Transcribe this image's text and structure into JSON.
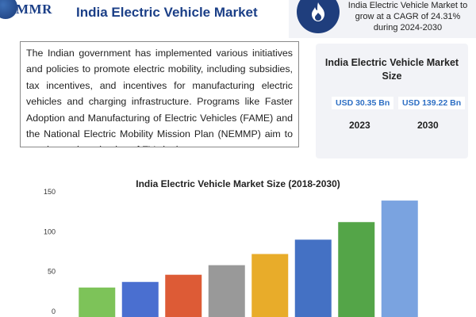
{
  "header": {
    "logo_text": "MMR",
    "title": "India Electric Vehicle Market"
  },
  "cagr": {
    "text": "India Electric Vehicle Market to grow at a CAGR of 24.31% during 2024-2030",
    "icon": "flame-icon"
  },
  "intro": {
    "paragraph": "The Indian government has implemented various initiatives and policies to promote electric mobility, including subsidies, tax incentives, and incentives for manufacturing electric vehicles and charging infrastructure. Programs like Faster Adoption and Manufacturing of Electric Vehicles (FAME) and the National Electric Mobility Mission Plan (NEMMP) aim to accelerate the adoption of EVs in the country."
  },
  "market_size": {
    "title": "India Electric Vehicle Market Size",
    "values": [
      {
        "amount": "USD 30.35 Bn",
        "year": "2023"
      },
      {
        "amount": "USD 139.22 Bn",
        "year": "2030"
      }
    ]
  },
  "chart_data": {
    "type": "bar",
    "title": "India Electric Vehicle Market Size (2018-2030)",
    "categories": [
      "",
      "",
      "",
      "",
      "",
      "",
      "",
      ""
    ],
    "values": [
      30,
      37,
      46,
      58,
      72,
      90,
      112,
      139
    ],
    "colors": [
      "#7dc359",
      "#4a6fd0",
      "#dd5b36",
      "#999999",
      "#e8ac2a",
      "#4471c4",
      "#54a548",
      "#7aa3e0"
    ],
    "ylim": [
      0,
      150
    ],
    "yticks": [
      0,
      50,
      100,
      150
    ],
    "grid": false
  },
  "colors": {
    "brand": "#1b3f87",
    "accent": "#2e6fc4",
    "card_bg": "#f2f3f7"
  }
}
